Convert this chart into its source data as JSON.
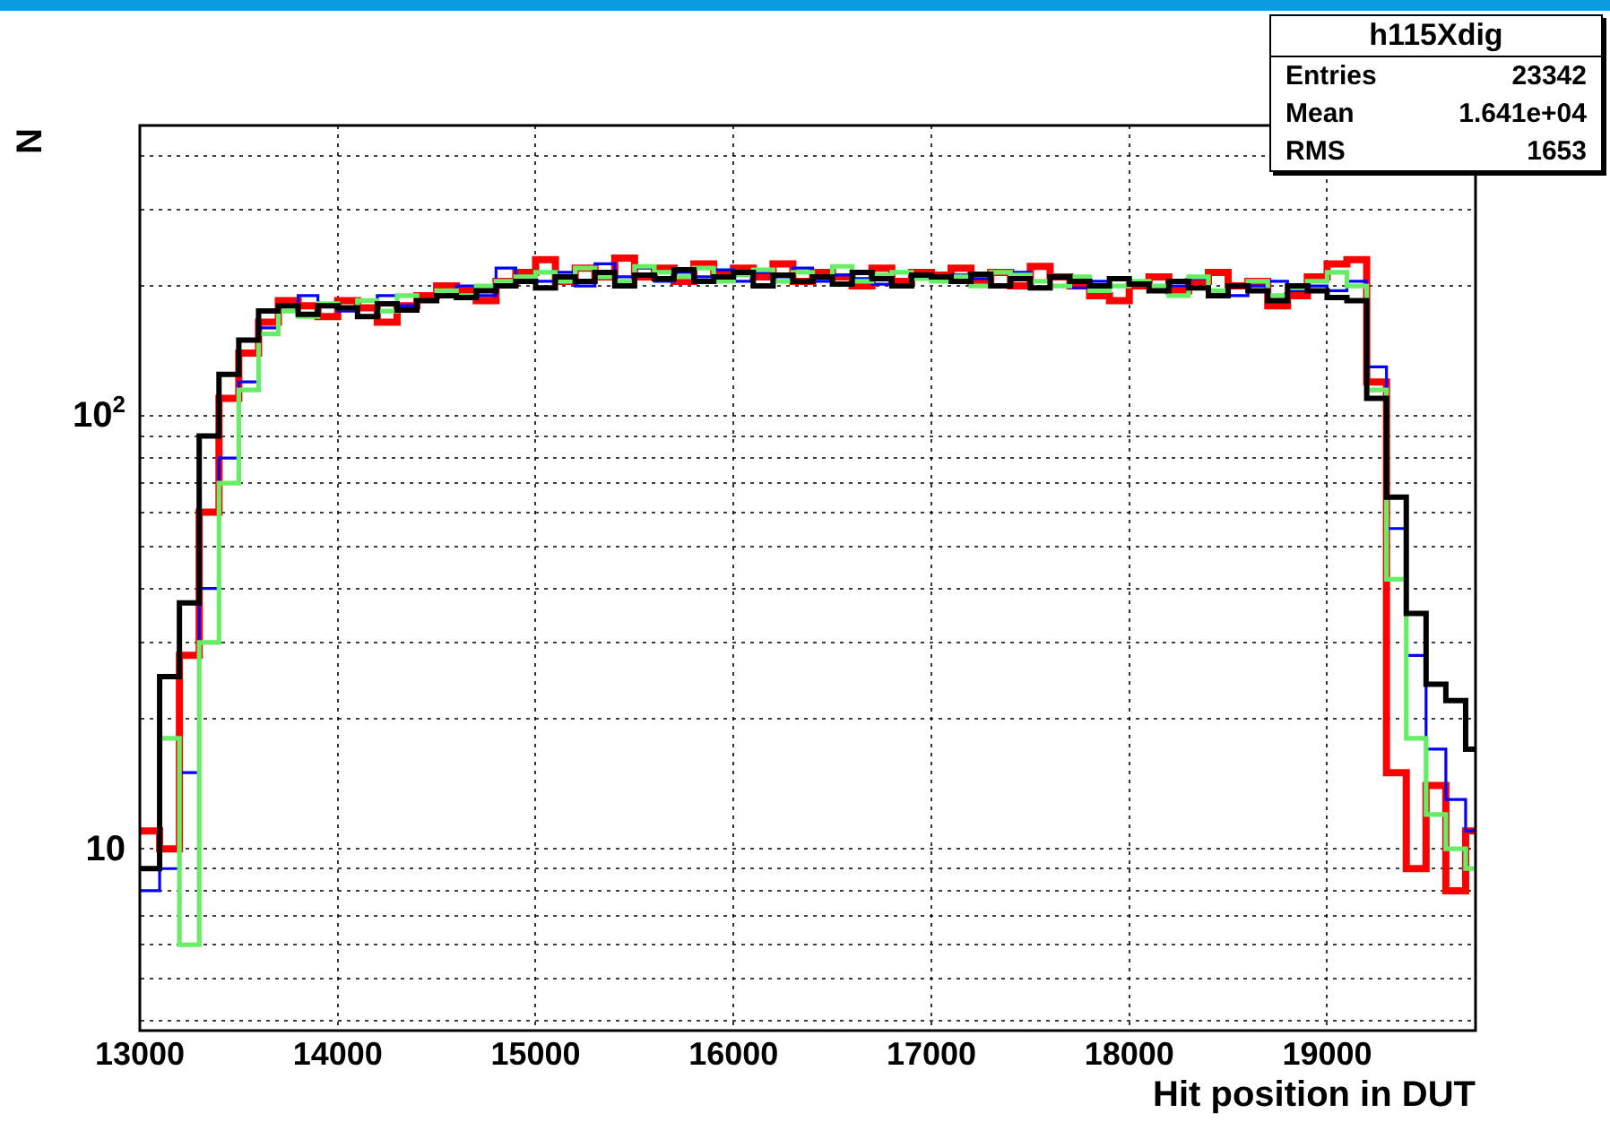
{
  "chart_data": {
    "type": "histogram",
    "xlabel": "Hit position in DUT",
    "ylabel": "N",
    "log": "y",
    "grid": true,
    "legend": false,
    "annotations": [
      "h115Xdig",
      "Entries",
      "23342",
      "Mean",
      "1.641e+04",
      "RMS",
      "1653"
    ],
    "xlim": [
      13000,
      19750
    ],
    "xticks": [
      13000,
      14000,
      15000,
      16000,
      17000,
      18000,
      19000
    ],
    "ylim": [
      3.8,
      470
    ],
    "yticks": [
      {
        "value": 4,
        "label": null
      },
      {
        "value": 5,
        "label": null
      },
      {
        "value": 6,
        "label": null
      },
      {
        "value": 7,
        "label": null
      },
      {
        "value": 8,
        "label": null
      },
      {
        "value": 9,
        "label": null
      },
      10,
      {
        "value": 20,
        "label": null
      },
      {
        "value": 30,
        "label": null
      },
      {
        "value": 40,
        "label": null
      },
      {
        "value": 50,
        "label": null
      },
      {
        "value": 60,
        "label": null
      },
      {
        "value": 70,
        "label": null
      },
      {
        "value": 80,
        "label": null
      },
      {
        "value": 90,
        "label": null
      },
      {
        "value": 100,
        "label": "10$^{2}$"
      },
      {
        "value": 200,
        "label": null
      },
      {
        "value": 300,
        "label": null
      },
      {
        "value": 400,
        "label": null
      }
    ],
    "bins": [
      13000,
      13100,
      13200,
      13300,
      13400,
      13500,
      13600,
      13700,
      13800,
      13900,
      14000,
      14100,
      14200,
      14300,
      14400,
      14500,
      14600,
      14700,
      14800,
      14900,
      15000,
      15100,
      15200,
      15300,
      15400,
      15500,
      15600,
      15700,
      15800,
      15900,
      16000,
      16100,
      16200,
      16300,
      16400,
      16500,
      16600,
      16700,
      16800,
      16900,
      17000,
      17100,
      17200,
      17300,
      17400,
      17500,
      17600,
      17700,
      17800,
      17900,
      18000,
      18100,
      18200,
      18300,
      18400,
      18500,
      18600,
      18700,
      18800,
      18900,
      19000,
      19100,
      19200,
      19300,
      19400,
      19500,
      19600,
      19700,
      19750
    ],
    "series": [
      {
        "color": "#000000",
        "values": [
          9,
          25,
          37,
          90,
          125,
          150,
          175,
          180,
          172,
          180,
          178,
          170,
          182,
          176,
          185,
          190,
          188,
          195,
          200,
          205,
          198,
          210,
          205,
          215,
          200,
          212,
          208,
          218,
          205,
          210,
          215,
          200,
          212,
          205,
          210,
          202,
          215,
          208,
          200,
          212,
          210,
          205,
          213,
          200,
          208,
          198,
          210,
          205,
          200,
          208,
          202,
          195,
          205,
          198,
          190,
          200,
          195,
          185,
          200,
          195,
          188,
          185,
          110,
          65,
          35,
          24,
          22,
          17
        ]
      },
      {
        "color": "#66ee66",
        "values": [
          9,
          18,
          6,
          30,
          70,
          115,
          155,
          175,
          170,
          182,
          178,
          185,
          175,
          190,
          185,
          195,
          190,
          200,
          205,
          210,
          215,
          205,
          220,
          210,
          205,
          222,
          215,
          210,
          220,
          205,
          212,
          218,
          205,
          215,
          210,
          222,
          205,
          212,
          215,
          208,
          205,
          210,
          200,
          215,
          212,
          205,
          200,
          210,
          195,
          200,
          205,
          200,
          190,
          210,
          195,
          200,
          205,
          190,
          198,
          205,
          215,
          200,
          115,
          42,
          18,
          12,
          10,
          9
        ]
      },
      {
        "color": "#0000ff",
        "values": [
          8,
          9,
          15,
          40,
          80,
          120,
          160,
          175,
          190,
          180,
          175,
          170,
          190,
          180,
          185,
          195,
          200,
          190,
          220,
          210,
          205,
          215,
          200,
          225,
          210,
          220,
          205,
          215,
          210,
          218,
          205,
          215,
          210,
          220,
          205,
          212,
          208,
          202,
          215,
          210,
          205,
          212,
          208,
          200,
          215,
          205,
          210,
          198,
          205,
          200,
          205,
          195,
          200,
          208,
          195,
          190,
          200,
          205,
          195,
          200,
          195,
          205,
          130,
          55,
          28,
          17,
          13,
          11
        ]
      },
      {
        "color": "#ff0000",
        "values": [
          11,
          10,
          28,
          60,
          110,
          140,
          165,
          185,
          180,
          170,
          185,
          178,
          165,
          180,
          190,
          200,
          195,
          185,
          205,
          215,
          230,
          205,
          220,
          210,
          232,
          210,
          220,
          205,
          225,
          215,
          220,
          210,
          225,
          205,
          215,
          210,
          200,
          220,
          205,
          215,
          212,
          220,
          205,
          215,
          200,
          222,
          210,
          200,
          190,
          185,
          200,
          210,
          195,
          205,
          215,
          200,
          205,
          180,
          190,
          210,
          225,
          230,
          120,
          15,
          9,
          14,
          8,
          11
        ]
      }
    ]
  }
}
